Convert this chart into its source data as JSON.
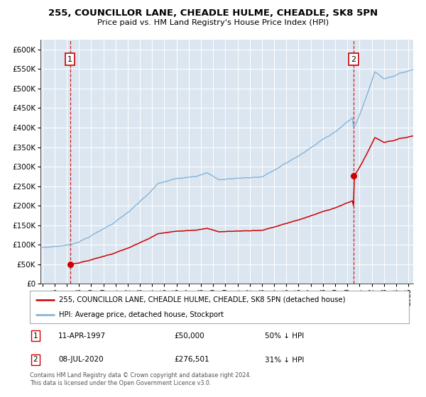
{
  "title": "255, COUNCILLOR LANE, CHEADLE HULME, CHEADLE, SK8 5PN",
  "subtitle": "Price paid vs. HM Land Registry's House Price Index (HPI)",
  "sale1_date": "11-APR-1997",
  "sale1_price": 50000,
  "sale1_label": "50% ↓ HPI",
  "sale2_date": "08-JUL-2020",
  "sale2_price": 276501,
  "sale2_label": "31% ↓ HPI",
  "legend_property": "255, COUNCILLOR LANE, CHEADLE HULME, CHEADLE, SK8 5PN (detached house)",
  "legend_hpi": "HPI: Average price, detached house, Stockport",
  "footer": "Contains HM Land Registry data © Crown copyright and database right 2024.\nThis data is licensed under the Open Government Licence v3.0.",
  "property_color": "#cc0000",
  "hpi_color": "#7bafd4",
  "plot_bg_color": "#dce6f1",
  "sale1_x": 1997.28,
  "sale2_x": 2020.52,
  "ylim_max": 625000,
  "xlim_min": 1994.85,
  "xlim_max": 2025.4
}
